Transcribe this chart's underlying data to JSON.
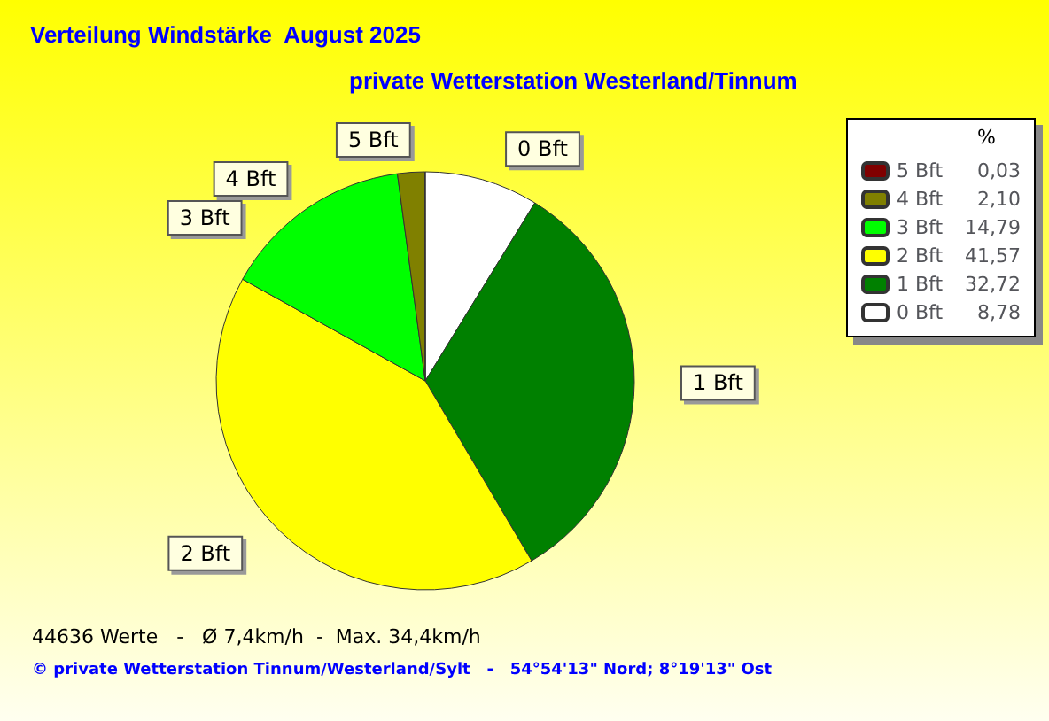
{
  "chart_data": {
    "type": "pie",
    "title": "Verteilung Windstärke  August 2025",
    "subtitle": "private Wetterstation Westerland/Tinnum",
    "legend_title": "%",
    "legend": "top right",
    "categories": [
      "0 Bft",
      "1 Bft",
      "2 Bft",
      "3 Bft",
      "4 Bft",
      "5 Bft"
    ],
    "values": [
      8.78,
      32.72,
      41.57,
      14.79,
      2.1,
      0.03
    ],
    "value_labels": [
      "8,78",
      "32,72",
      "41,57",
      "14,79",
      "2,10",
      "0,03"
    ],
    "colors": [
      "#ffffff",
      "#008000",
      "#ffff00",
      "#00ff00",
      "#808000",
      "#800000"
    ],
    "annotations": [
      "44636 Werte   -   Ø 7,4km/h  -  Max. 34,4km/h",
      "© private Wetterstation Tinnum/Westerland/Sylt   -   54°54'13\" Nord; 8°19'13\" Ost"
    ]
  }
}
